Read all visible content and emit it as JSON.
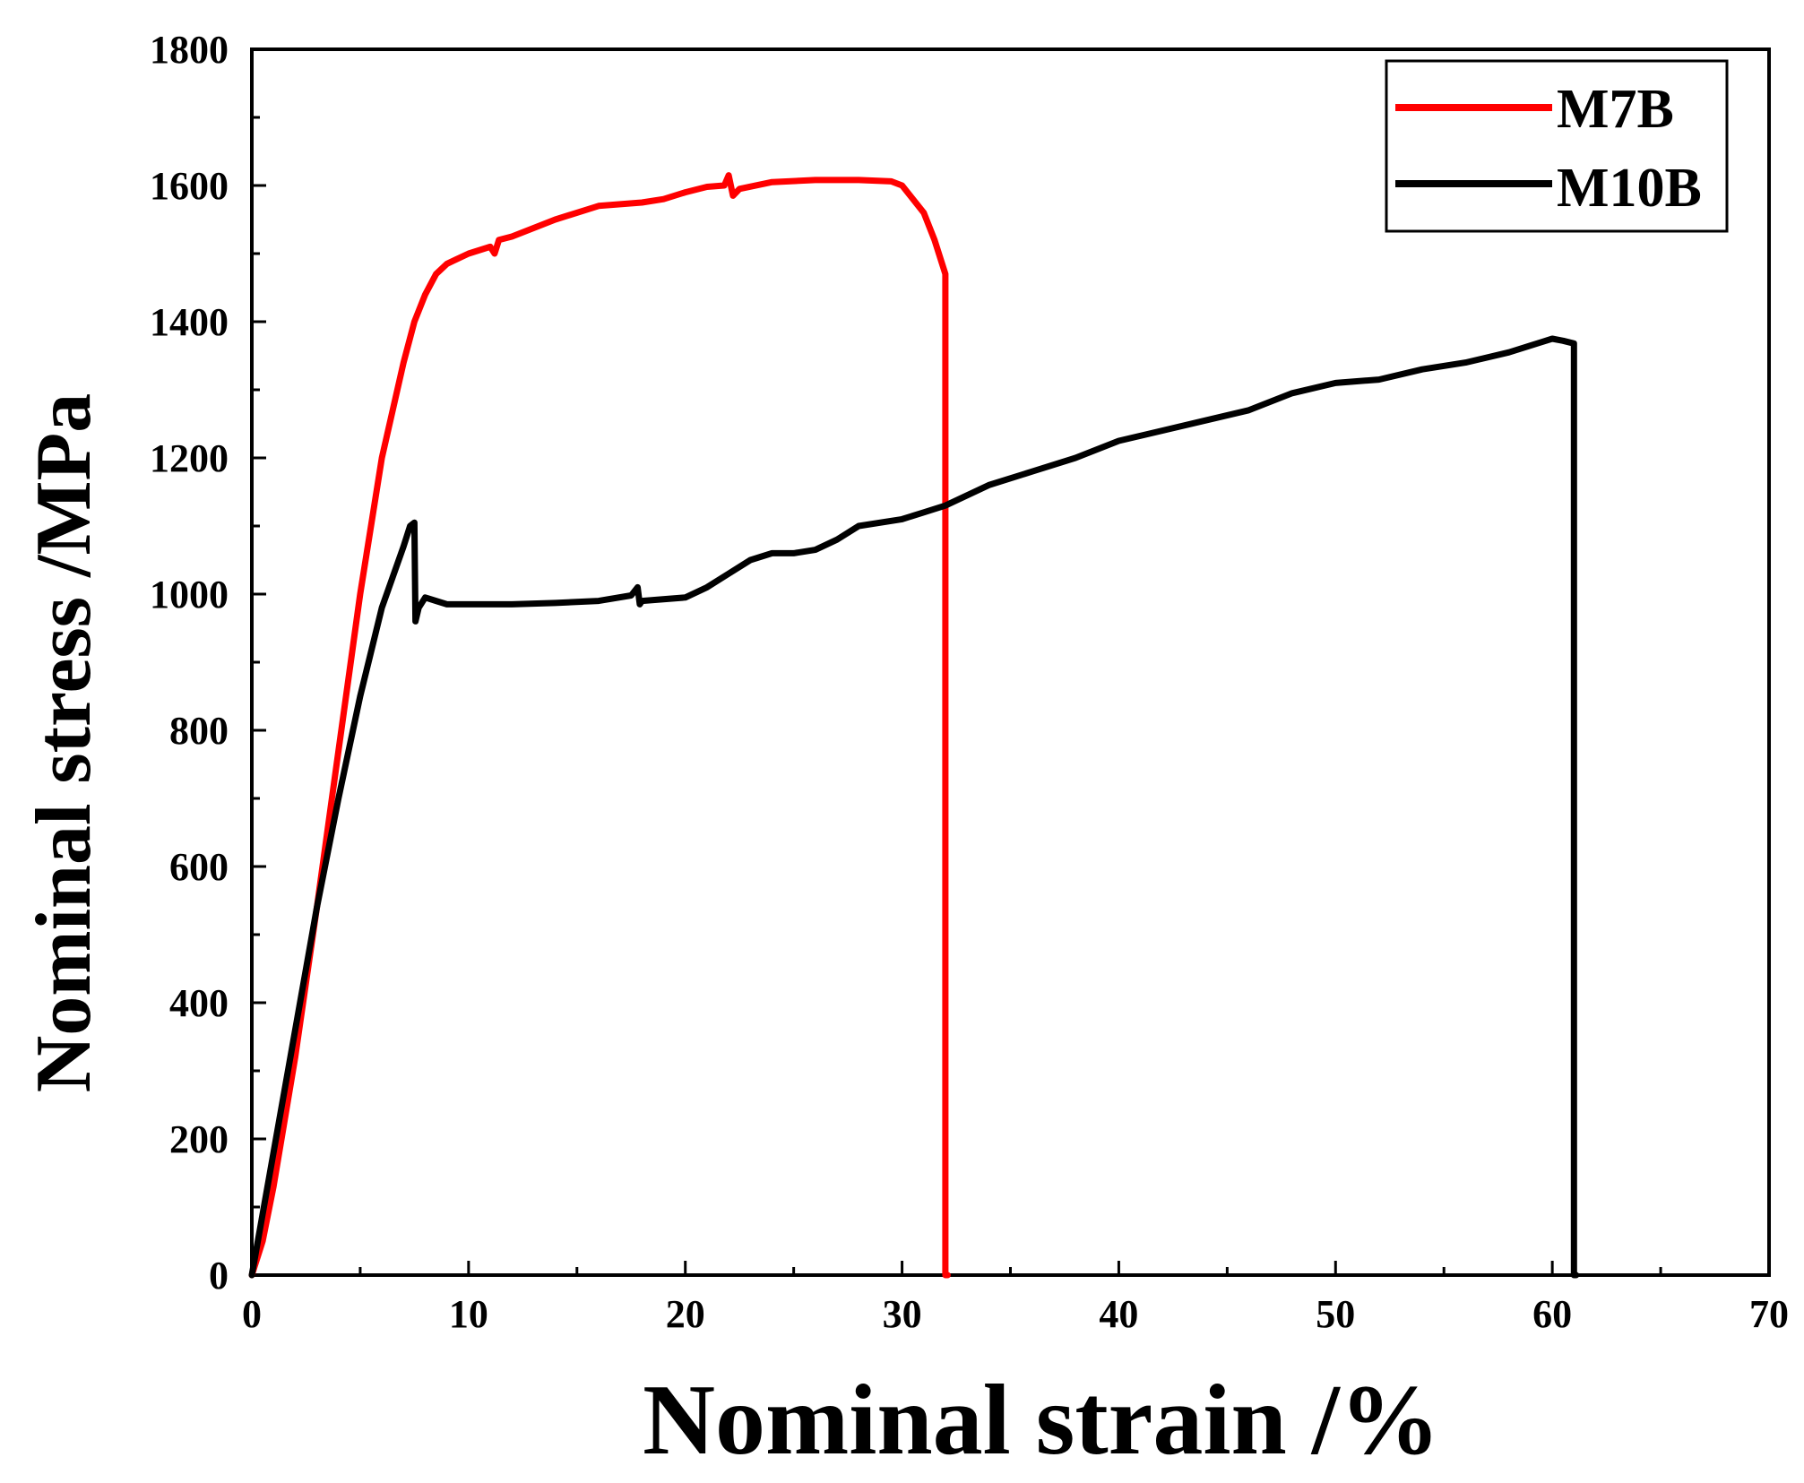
{
  "chart_data": {
    "type": "line",
    "title": "",
    "xlabel": "Nominal strain /%",
    "ylabel": "Nominal stress /MPa",
    "xlim": [
      0,
      70
    ],
    "ylim": [
      0,
      1800
    ],
    "xticks": [
      0,
      10,
      20,
      30,
      40,
      50,
      60,
      70
    ],
    "yticks": [
      0,
      200,
      400,
      600,
      800,
      1000,
      1200,
      1400,
      1600,
      1800
    ],
    "xtick_labels": [
      "0",
      "10",
      "20",
      "30",
      "40",
      "50",
      "60",
      "70"
    ],
    "ytick_labels": [
      "0",
      "200",
      "400",
      "600",
      "800",
      "1000",
      "1200",
      "1400",
      "1600",
      "1800"
    ],
    "grid": false,
    "legend_position": "top-right",
    "series": [
      {
        "name": "M7B",
        "color": "#ff0000",
        "x": [
          0,
          0.5,
          1,
          2,
          3,
          4,
          5,
          6,
          7,
          7.5,
          8,
          8.5,
          9,
          10,
          11,
          11.2,
          11.4,
          12,
          14,
          16,
          18,
          19,
          20,
          21,
          21.8,
          22,
          22.2,
          22.5,
          24,
          26,
          28,
          29.5,
          30,
          31,
          31.5,
          32,
          32,
          32,
          32.1
        ],
        "y": [
          0,
          50,
          130,
          320,
          540,
          770,
          1000,
          1200,
          1340,
          1400,
          1440,
          1470,
          1485,
          1500,
          1510,
          1500,
          1520,
          1525,
          1550,
          1570,
          1575,
          1580,
          1590,
          1598,
          1600,
          1615,
          1585,
          1595,
          1605,
          1608,
          1608,
          1606,
          1600,
          1560,
          1520,
          1470,
          800,
          0,
          0
        ]
      },
      {
        "name": "M10B",
        "color": "#000000",
        "x": [
          0,
          1,
          2,
          3,
          4,
          5,
          6,
          7,
          7.3,
          7.5,
          7.55,
          7.7,
          8,
          8.5,
          9,
          10,
          11,
          12,
          14,
          16,
          17.5,
          17.8,
          17.9,
          18,
          20,
          21,
          22,
          23,
          24,
          25,
          26,
          27,
          28,
          30,
          31,
          32,
          34,
          36,
          38,
          40,
          42,
          44,
          46,
          48,
          50,
          52,
          54,
          56,
          58,
          59.5,
          60,
          60.5,
          61,
          61,
          61,
          61.1
        ],
        "y": [
          0,
          180,
          360,
          540,
          700,
          850,
          980,
          1070,
          1100,
          1105,
          960,
          980,
          995,
          990,
          985,
          985,
          985,
          985,
          987,
          990,
          998,
          1010,
          985,
          990,
          995,
          1010,
          1030,
          1050,
          1060,
          1060,
          1065,
          1080,
          1100,
          1110,
          1120,
          1130,
          1160,
          1180,
          1200,
          1225,
          1240,
          1255,
          1270,
          1295,
          1310,
          1315,
          1330,
          1340,
          1355,
          1370,
          1375,
          1372,
          1368,
          700,
          0,
          0
        ]
      }
    ]
  }
}
